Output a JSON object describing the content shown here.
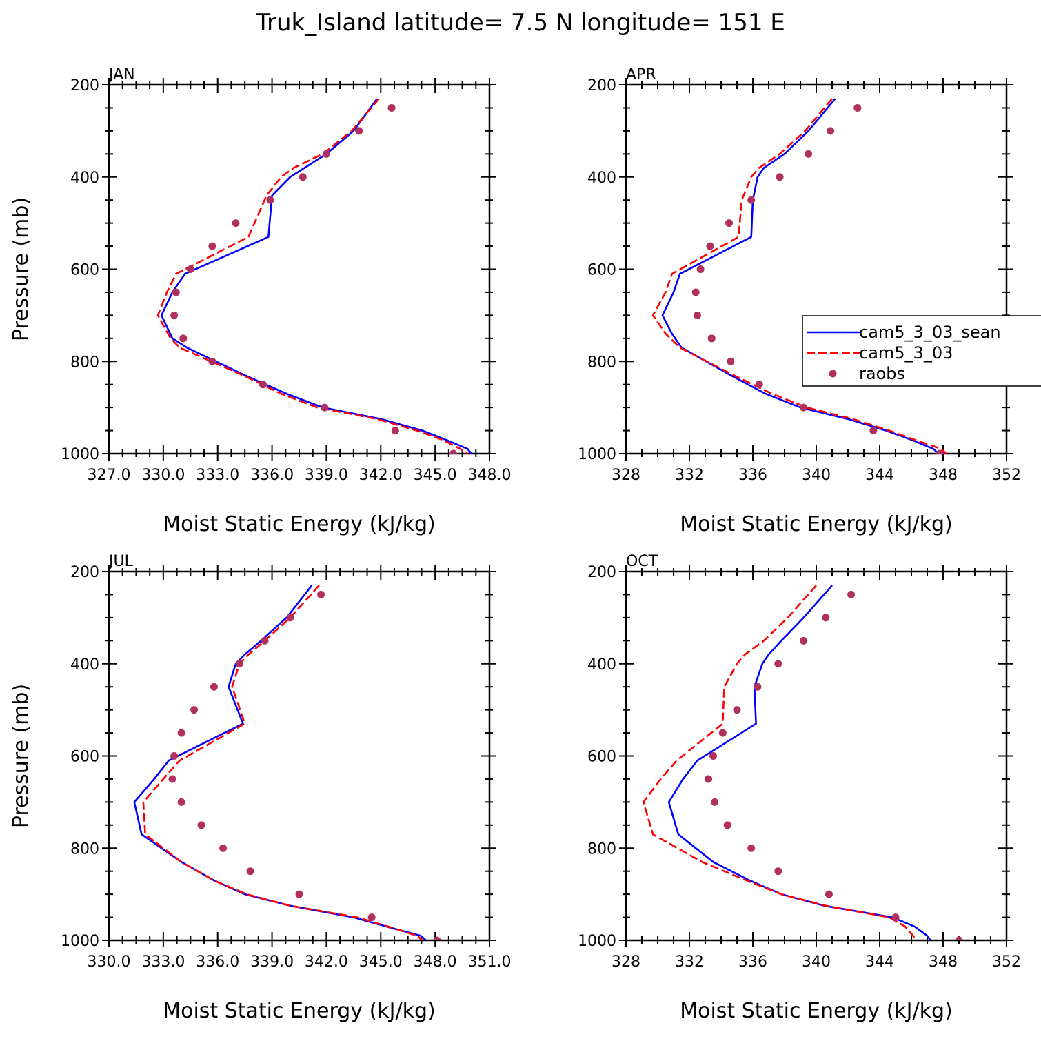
{
  "figure": {
    "title": "Truk_Island  latitude= 7.5 N longitude= 151 E"
  },
  "colors": {
    "cam5_3_03_sean": "#0000ff",
    "cam5_3_03": "#ff0000",
    "raobs": "#b03060"
  },
  "legend": {
    "placement": "right of APR panel",
    "entries": [
      {
        "label": "cam5_3_03_sean",
        "style": "solid-line"
      },
      {
        "label": "cam5_3_03",
        "style": "dashed-line"
      },
      {
        "label": "raobs",
        "style": "dot"
      }
    ]
  },
  "chart_data": [
    {
      "type": "line",
      "panel": "JAN",
      "xlabel": "Moist Static Energy (kJ/kg)",
      "ylabel": "Pressure (mb)",
      "xlim": [
        327.0,
        348.0
      ],
      "ylim": [
        200,
        1000
      ],
      "y_inverted": true,
      "xticks": [
        327.0,
        330.0,
        333.0,
        336.0,
        339.0,
        342.0,
        345.0,
        348.0
      ],
      "xtick_labels": [
        "327.0",
        "330.0",
        "333.0",
        "336.0",
        "339.0",
        "342.0",
        "345.0",
        "348.0"
      ],
      "yticks": [
        200,
        400,
        600,
        800,
        1000
      ],
      "ytick_labels": [
        "200",
        "400",
        "600",
        "800",
        "1000"
      ],
      "series": [
        {
          "name": "cam5_3_03_sean",
          "style": "solid",
          "x": [
            341.8,
            340.5,
            339.0,
            337.8,
            337.0,
            336.0,
            335.8,
            331.2,
            330.5,
            329.9,
            330.5,
            331.3,
            334.5,
            336.8,
            338.8,
            342.0,
            344.3,
            345.6,
            346.8,
            347.0
          ],
          "y": [
            230,
            300,
            350,
            380,
            400,
            440,
            530,
            610,
            650,
            700,
            750,
            770,
            830,
            870,
            900,
            925,
            950,
            970,
            990,
            1000
          ]
        },
        {
          "name": "cam5_3_03",
          "style": "dashed",
          "x": [
            341.9,
            340.4,
            338.8,
            337.2,
            336.5,
            335.7,
            334.7,
            330.7,
            330.2,
            329.7,
            330.4,
            330.9,
            334.4,
            336.5,
            338.5,
            341.8,
            344.0,
            345.4,
            346.4,
            346.8
          ],
          "y": [
            230,
            300,
            350,
            380,
            400,
            440,
            530,
            610,
            650,
            700,
            750,
            770,
            830,
            870,
            900,
            925,
            950,
            970,
            990,
            1000
          ]
        },
        {
          "name": "raobs",
          "style": "dots",
          "x": [
            342.6,
            340.8,
            339.0,
            337.7,
            335.9,
            334.0,
            332.7,
            331.5,
            330.7,
            330.6,
            331.1,
            332.7,
            335.5,
            338.9,
            342.8,
            346.0
          ],
          "y": [
            250,
            300,
            350,
            400,
            450,
            500,
            550,
            600,
            650,
            700,
            750,
            800,
            850,
            900,
            950,
            1000
          ]
        }
      ]
    },
    {
      "type": "line",
      "panel": "APR",
      "xlabel": "Moist Static Energy (kJ/kg)",
      "ylabel": "",
      "xlim": [
        328,
        352
      ],
      "ylim": [
        200,
        1000
      ],
      "y_inverted": true,
      "xticks": [
        328,
        332,
        336,
        340,
        344,
        348,
        352
      ],
      "xtick_labels": [
        "328",
        "332",
        "336",
        "340",
        "344",
        "348",
        "352"
      ],
      "yticks": [
        200,
        400,
        600,
        800,
        1000
      ],
      "ytick_labels": [
        "200",
        "400",
        "600",
        "800",
        "1000"
      ],
      "series": [
        {
          "name": "cam5_3_03_sean",
          "style": "solid",
          "x": [
            341.2,
            339.5,
            338.0,
            336.7,
            336.3,
            336.0,
            335.9,
            331.4,
            331.0,
            330.3,
            330.9,
            331.5,
            334.6,
            336.8,
            339.0,
            342.0,
            344.4,
            346.0,
            347.4,
            347.7
          ],
          "y": [
            230,
            300,
            350,
            380,
            400,
            450,
            530,
            610,
            650,
            700,
            740,
            770,
            830,
            870,
            900,
            925,
            950,
            970,
            990,
            1000
          ]
        },
        {
          "name": "cam5_3_03",
          "style": "dashed",
          "x": [
            341.0,
            339.3,
            337.7,
            336.4,
            335.9,
            335.3,
            335.1,
            330.9,
            330.5,
            329.7,
            330.5,
            331.4,
            334.8,
            337.2,
            339.4,
            342.3,
            344.6,
            346.2,
            347.9,
            348.2
          ],
          "y": [
            230,
            300,
            350,
            380,
            400,
            450,
            530,
            610,
            650,
            700,
            740,
            770,
            830,
            870,
            900,
            925,
            950,
            970,
            990,
            1000
          ]
        },
        {
          "name": "raobs",
          "style": "dots",
          "x": [
            342.6,
            340.9,
            339.5,
            337.7,
            335.9,
            334.5,
            333.3,
            332.7,
            332.4,
            332.5,
            333.4,
            334.6,
            336.4,
            339.2,
            343.6,
            347.8
          ],
          "y": [
            250,
            300,
            350,
            400,
            450,
            500,
            550,
            600,
            650,
            700,
            750,
            800,
            850,
            900,
            950,
            1000
          ]
        }
      ]
    },
    {
      "type": "line",
      "panel": "JUL",
      "xlabel": "Moist Static Energy (kJ/kg)",
      "ylabel": "Pressure (mb)",
      "xlim": [
        330.0,
        351.0
      ],
      "ylim": [
        200,
        1000
      ],
      "y_inverted": true,
      "xticks": [
        330.0,
        333.0,
        336.0,
        339.0,
        342.0,
        345.0,
        348.0,
        351.0
      ],
      "xtick_labels": [
        "330.0",
        "333.0",
        "336.0",
        "339.0",
        "342.0",
        "345.0",
        "348.0",
        "351.0"
      ],
      "yticks": [
        200,
        400,
        600,
        800,
        1000
      ],
      "ytick_labels": [
        "200",
        "400",
        "600",
        "800",
        "1000"
      ],
      "series": [
        {
          "name": "cam5_3_03_sean",
          "style": "solid",
          "x": [
            341.2,
            339.8,
            338.4,
            337.5,
            337.0,
            336.6,
            337.4,
            333.3,
            332.5,
            331.4,
            331.8,
            334.0,
            335.8,
            337.5,
            340.0,
            343.5,
            345.3,
            347.2,
            347.5
          ],
          "y": [
            230,
            300,
            350,
            380,
            400,
            450,
            530,
            610,
            650,
            700,
            770,
            830,
            870,
            900,
            925,
            950,
            970,
            990,
            1000
          ]
        },
        {
          "name": "cam5_3_03",
          "style": "dashed",
          "x": [
            341.6,
            340.0,
            338.6,
            337.7,
            337.2,
            336.8,
            337.5,
            333.9,
            333.0,
            331.9,
            332.0,
            334.0,
            335.8,
            337.6,
            340.0,
            343.7,
            345.4,
            347.0,
            347.3
          ],
          "y": [
            230,
            300,
            350,
            380,
            400,
            450,
            530,
            610,
            650,
            700,
            770,
            830,
            870,
            900,
            925,
            950,
            970,
            990,
            1000
          ]
        },
        {
          "name": "raobs",
          "style": "dots",
          "x": [
            341.7,
            340.0,
            338.6,
            337.2,
            335.8,
            334.7,
            334.0,
            333.6,
            333.5,
            334.0,
            335.1,
            336.3,
            337.8,
            340.5,
            344.5,
            348.1
          ],
          "y": [
            250,
            300,
            350,
            400,
            450,
            500,
            550,
            600,
            650,
            700,
            750,
            800,
            850,
            900,
            950,
            1000
          ]
        }
      ]
    },
    {
      "type": "line",
      "panel": "OCT",
      "xlabel": "Moist Static Energy (kJ/kg)",
      "ylabel": "",
      "xlim": [
        328,
        352
      ],
      "ylim": [
        200,
        1000
      ],
      "y_inverted": true,
      "xticks": [
        328,
        332,
        336,
        340,
        344,
        348,
        352
      ],
      "xtick_labels": [
        "328",
        "332",
        "336",
        "340",
        "344",
        "348",
        "352"
      ],
      "yticks": [
        200,
        400,
        600,
        800,
        1000
      ],
      "ytick_labels": [
        "200",
        "400",
        "600",
        "800",
        "1000"
      ],
      "series": [
        {
          "name": "cam5_3_03_sean",
          "style": "solid",
          "x": [
            341.0,
            339.2,
            337.8,
            337.0,
            336.6,
            336.1,
            336.2,
            332.5,
            331.6,
            330.7,
            331.3,
            333.5,
            335.8,
            337.8,
            340.5,
            344.8,
            346.2,
            347.0,
            347.2
          ],
          "y": [
            230,
            300,
            350,
            380,
            400,
            450,
            530,
            610,
            650,
            700,
            770,
            830,
            870,
            900,
            925,
            950,
            970,
            990,
            1000
          ]
        },
        {
          "name": "cam5_3_03",
          "style": "dashed",
          "x": [
            340.0,
            338.2,
            336.7,
            335.5,
            335.0,
            334.2,
            334.1,
            331.2,
            330.2,
            329.1,
            329.7,
            332.8,
            335.6,
            337.8,
            340.6,
            344.6,
            345.6,
            346.1,
            346.3
          ],
          "y": [
            230,
            300,
            350,
            380,
            400,
            450,
            530,
            610,
            650,
            700,
            770,
            830,
            870,
            900,
            925,
            950,
            970,
            990,
            1000
          ]
        },
        {
          "name": "raobs",
          "style": "dots",
          "x": [
            342.2,
            340.6,
            339.2,
            337.6,
            336.3,
            335.0,
            334.1,
            333.5,
            333.2,
            333.6,
            334.4,
            335.9,
            337.6,
            340.8,
            345.0,
            349.0
          ],
          "y": [
            250,
            300,
            350,
            400,
            450,
            500,
            550,
            600,
            650,
            700,
            750,
            800,
            850,
            900,
            950,
            1000
          ]
        }
      ]
    }
  ]
}
